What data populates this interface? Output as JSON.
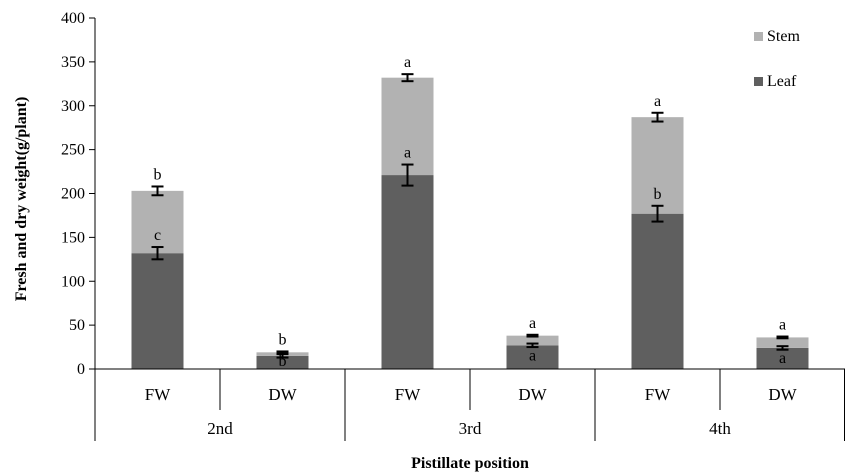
{
  "chart_data": {
    "type": "bar",
    "stacked": true,
    "xlabel": "Pistillate position",
    "ylabel": "Fresh and dry weight(g/plant)",
    "ylim": [
      0,
      400
    ],
    "yticks": [
      0,
      50,
      100,
      150,
      200,
      250,
      300,
      350,
      400
    ],
    "groups": [
      "2nd",
      "3rd",
      "4th"
    ],
    "categories": [
      "FW",
      "DW",
      "FW",
      "DW",
      "FW",
      "DW"
    ],
    "series": [
      {
        "name": "Leaf",
        "color": "#5f5f5f",
        "values": [
          132,
          15,
          221,
          27,
          177,
          24
        ],
        "error": [
          7,
          2,
          12,
          2,
          9,
          2
        ],
        "labels": [
          "c",
          "b",
          "a",
          "a",
          "b",
          "a"
        ]
      },
      {
        "name": "Stem",
        "color": "#b2b2b2",
        "values": [
          71,
          4,
          111,
          11,
          110,
          12
        ],
        "error": [
          5,
          1,
          4,
          1,
          5,
          1
        ],
        "labels": [
          "b",
          "b",
          "a",
          "a",
          "a",
          "a"
        ]
      }
    ],
    "legend_position": "top-right",
    "grid": false
  }
}
